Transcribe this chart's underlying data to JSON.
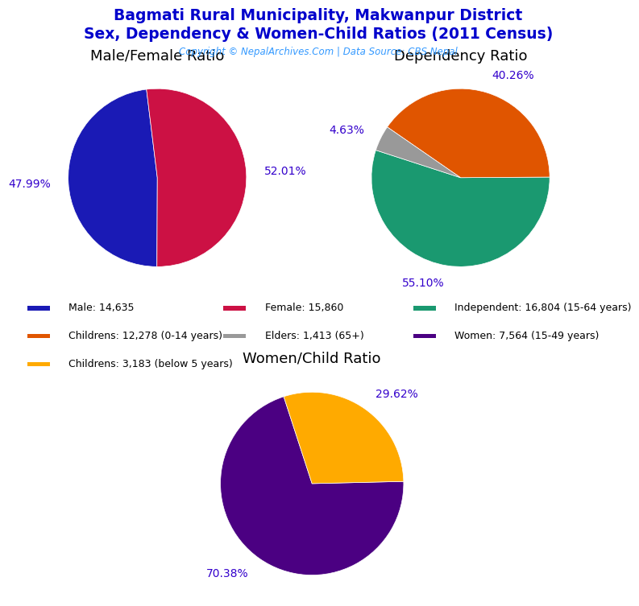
{
  "title_line1": "Bagmati Rural Municipality, Makwanpur District",
  "title_line2": "Sex, Dependency & Women-Child Ratios (2011 Census)",
  "copyright": "Copyright © NepalArchives.Com | Data Source: CBS Nepal",
  "title_color": "#0000cc",
  "copyright_color": "#3399ff",
  "pie1_title": "Male/Female Ratio",
  "pie1_values": [
    47.99,
    52.01
  ],
  "pie1_colors": [
    "#1a1ab5",
    "#cc1144"
  ],
  "pie1_labels": [
    "47.99%",
    "52.01%"
  ],
  "pie1_startangle": 97,
  "pie2_title": "Dependency Ratio",
  "pie2_values": [
    55.1,
    40.26,
    4.63
  ],
  "pie2_colors": [
    "#1a9970",
    "#e05500",
    "#999999"
  ],
  "pie2_labels": [
    "55.10%",
    "40.26%",
    "4.63%"
  ],
  "pie2_startangle": 162,
  "pie3_title": "Women/Child Ratio",
  "pie3_values": [
    70.38,
    29.62
  ],
  "pie3_colors": [
    "#4b0082",
    "#ffaa00"
  ],
  "pie3_labels": [
    "70.38%",
    "29.62%"
  ],
  "pie3_startangle": 108,
  "legend_items": [
    {
      "label": "Male: 14,635",
      "color": "#1a1ab5"
    },
    {
      "label": "Female: 15,860",
      "color": "#cc1144"
    },
    {
      "label": "Independent: 16,804 (15-64 years)",
      "color": "#1a9970"
    },
    {
      "label": "Childrens: 12,278 (0-14 years)",
      "color": "#e05500"
    },
    {
      "label": "Elders: 1,413 (65+)",
      "color": "#999999"
    },
    {
      "label": "Women: 7,564 (15-49 years)",
      "color": "#4b0082"
    },
    {
      "label": "Childrens: 3,183 (below 5 years)",
      "color": "#ffaa00"
    }
  ],
  "label_color": "#3300cc",
  "label_fontsize": 10,
  "pie_title_fontsize": 13,
  "background_color": "#ffffff"
}
